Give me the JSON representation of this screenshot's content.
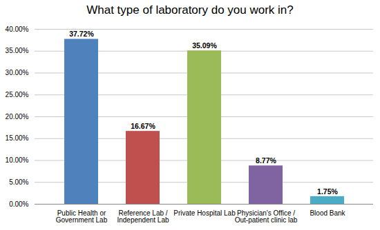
{
  "chart_data": {
    "type": "bar",
    "title": "What type of laboratory do you work in?",
    "categories": [
      "Public Health or Government Lab",
      "Reference Lab / Independent Lab",
      "Private Hospital Lab",
      "Physician's Office / Out-patient clinic lab",
      "Blood Bank"
    ],
    "values": [
      37.72,
      16.67,
      35.09,
      8.77,
      1.75
    ],
    "value_labels": [
      "37.72%",
      "16.67%",
      "35.09%",
      "8.77%",
      "1.75%"
    ],
    "colors": [
      "#4f81bd",
      "#c0504d",
      "#9bbb59",
      "#8064a2",
      "#4bacc6"
    ],
    "ylim": [
      0,
      40
    ],
    "yticks": [
      {
        "value": 0,
        "label": "0.00%"
      },
      {
        "value": 5,
        "label": "5.00%"
      },
      {
        "value": 10,
        "label": "10.00%"
      },
      {
        "value": 15,
        "label": "15.00%"
      },
      {
        "value": 20,
        "label": "20.00%"
      },
      {
        "value": 25,
        "label": "25.00%"
      },
      {
        "value": 30,
        "label": "30.00%"
      },
      {
        "value": 35,
        "label": "35.00%"
      },
      {
        "value": 40,
        "label": "40.00%"
      }
    ],
    "grid": true,
    "data_labels": true
  }
}
